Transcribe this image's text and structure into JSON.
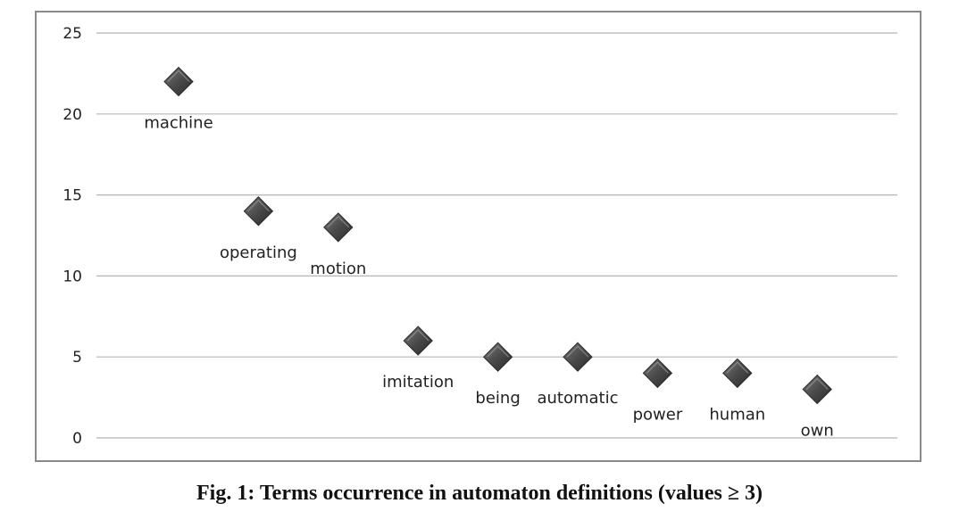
{
  "chart_data": {
    "type": "scatter",
    "categories": [
      "machine",
      "operating",
      "motion",
      "imitation",
      "being",
      "automatic",
      "power",
      "human",
      "own"
    ],
    "values": [
      22,
      14,
      13,
      6,
      5,
      5,
      4,
      4,
      3
    ],
    "y_ticks": [
      "0",
      "5",
      "10",
      "15",
      "20",
      "25"
    ],
    "ylim": [
      0,
      25
    ],
    "grid": true,
    "legend": "none",
    "marker": "diamond",
    "marker_color": "#4a4a4a",
    "grid_color": "#b5b5b5",
    "frame_color": "#8a8a8a"
  },
  "caption": "Fig. 1: Terms occurrence in automaton definitions (values ≥ 3)"
}
